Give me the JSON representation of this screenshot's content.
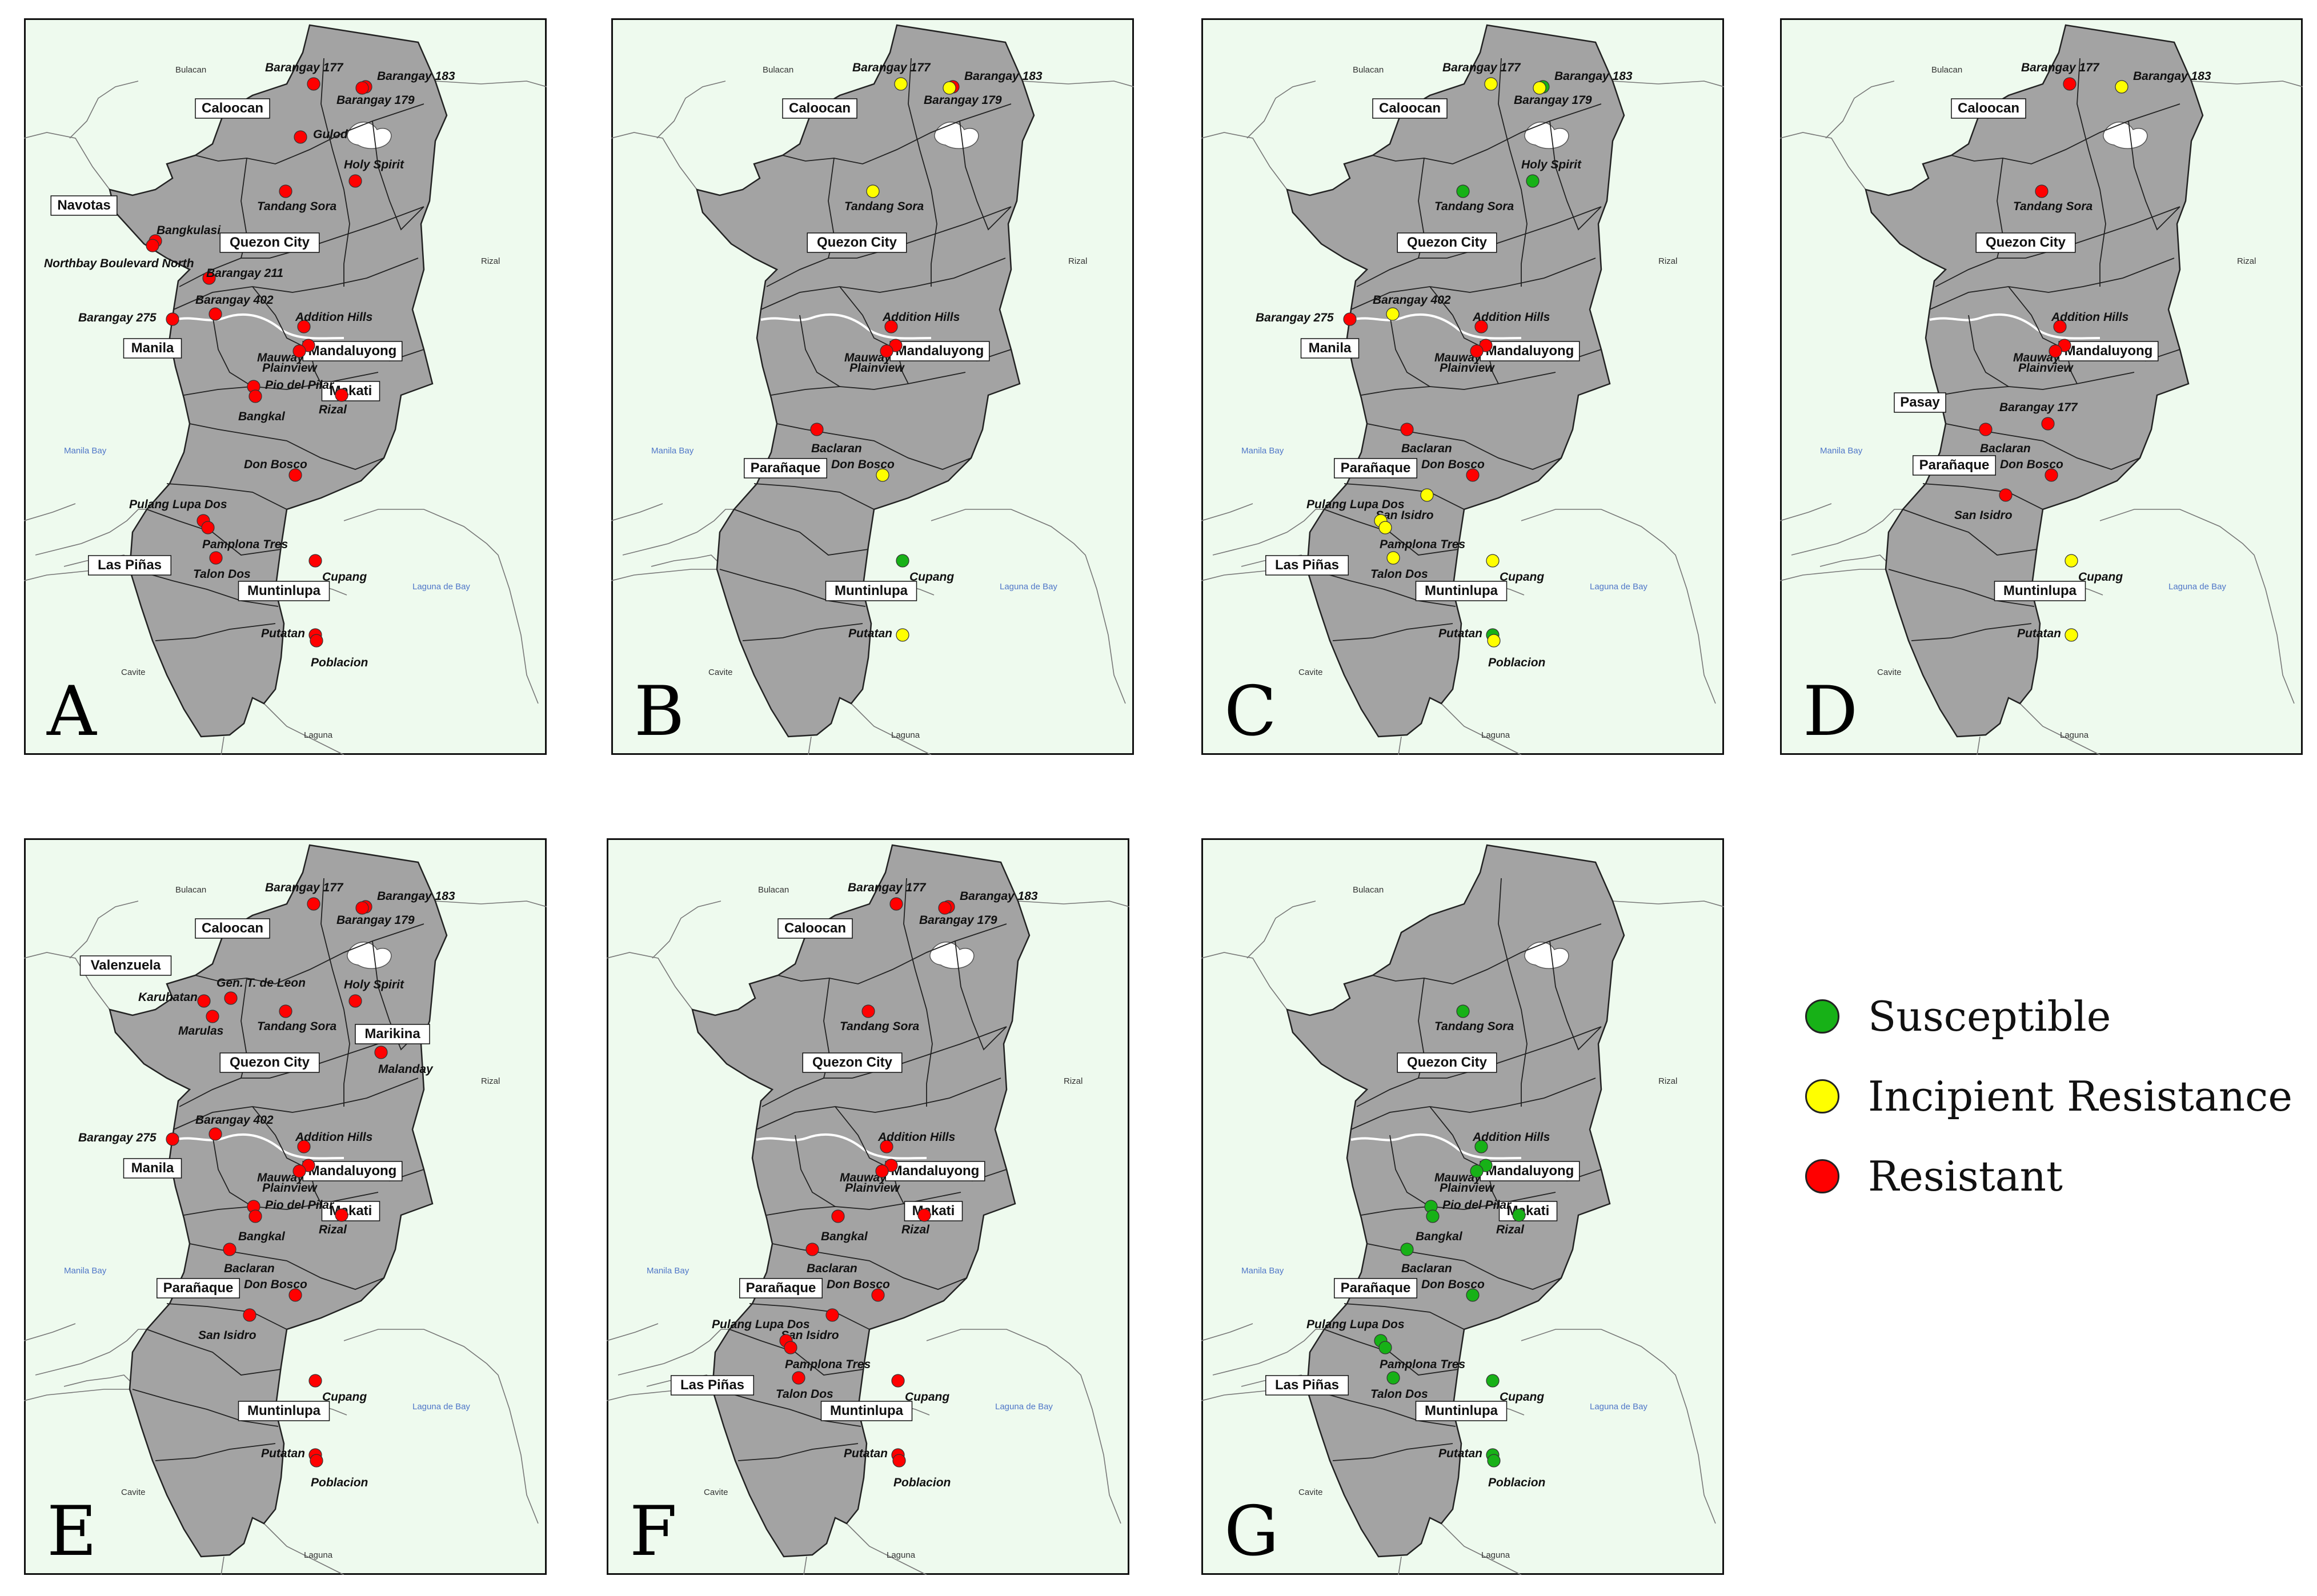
{
  "colors": {
    "susceptible": "#17b117",
    "incipient": "#ffff00",
    "resistant": "#ff0000",
    "land": "#a3a3a3",
    "sea": "#eefaee",
    "border": "#222222",
    "water_label": "#4f76c8"
  },
  "background_labels": {
    "bulacan": "Bulacan",
    "rizal": "Rizal",
    "manila_bay": "Manila Bay",
    "laguna_de_bay": "Laguna de Bay",
    "cavite": "Cavite",
    "laguna": "Laguna"
  },
  "legend": [
    {
      "label": "Susceptible",
      "status": "susceptible"
    },
    {
      "label": "Incipient Resistance",
      "status": "incipient"
    },
    {
      "label": "Resistant",
      "status": "resistant"
    }
  ],
  "panels": [
    {
      "letter": "A",
      "cities": [
        "Caloocan",
        "Navotas",
        "Quezon City",
        "Manila",
        "Mandaluyong",
        "Makati",
        "Las Piñas",
        "Muntinlupa"
      ],
      "sites": [
        {
          "name": "Barangay 177",
          "status": "resistant"
        },
        {
          "name": "Barangay 183",
          "status": "resistant"
        },
        {
          "name": "Barangay 179",
          "status": "resistant"
        },
        {
          "name": "Gulod",
          "status": "resistant"
        },
        {
          "name": "Holy Spirit",
          "status": "resistant"
        },
        {
          "name": "Tandang Sora",
          "status": "resistant"
        },
        {
          "name": "Bangkulasi",
          "status": "resistant"
        },
        {
          "name": "Northbay Boulevard North",
          "status": "resistant"
        },
        {
          "name": "Barangay 211",
          "status": "resistant"
        },
        {
          "name": "Barangay 402",
          "status": "resistant"
        },
        {
          "name": "Barangay 275",
          "status": "resistant"
        },
        {
          "name": "Addition Hills",
          "status": "resistant"
        },
        {
          "name": "Mauway",
          "status": "resistant"
        },
        {
          "name": "Plainview",
          "status": "resistant"
        },
        {
          "name": "Pio del Pilar",
          "status": "resistant"
        },
        {
          "name": "Bangkal",
          "status": "resistant"
        },
        {
          "name": "Rizal",
          "status": "resistant"
        },
        {
          "name": "Don Bosco",
          "status": "resistant"
        },
        {
          "name": "Pulang Lupa Dos",
          "status": "resistant"
        },
        {
          "name": "Pamplona Tres",
          "status": "resistant"
        },
        {
          "name": "Talon Dos",
          "status": "resistant"
        },
        {
          "name": "Cupang",
          "status": "resistant"
        },
        {
          "name": "Putatan",
          "status": "resistant"
        },
        {
          "name": "Poblacion",
          "status": "resistant"
        }
      ]
    },
    {
      "letter": "B",
      "cities": [
        "Caloocan",
        "Quezon City",
        "Mandaluyong",
        "Parañaque",
        "Muntinlupa"
      ],
      "sites": [
        {
          "name": "Barangay 177",
          "status": "incipient"
        },
        {
          "name": "Barangay 183",
          "status": "resistant"
        },
        {
          "name": "Barangay 179",
          "status": "incipient"
        },
        {
          "name": "Tandang Sora",
          "status": "incipient"
        },
        {
          "name": "Addition Hills",
          "status": "resistant"
        },
        {
          "name": "Mauway",
          "status": "resistant"
        },
        {
          "name": "Plainview",
          "status": "resistant"
        },
        {
          "name": "Baclaran",
          "status": "resistant"
        },
        {
          "name": "Don Bosco",
          "status": "incipient"
        },
        {
          "name": "Cupang",
          "status": "susceptible"
        },
        {
          "name": "Putatan",
          "status": "incipient"
        }
      ]
    },
    {
      "letter": "C",
      "cities": [
        "Caloocan",
        "Quezon City",
        "Manila",
        "Mandaluyong",
        "Parañaque",
        "Las Piñas",
        "Muntinlupa"
      ],
      "sites": [
        {
          "name": "Barangay 177",
          "status": "incipient"
        },
        {
          "name": "Barangay 183",
          "status": "susceptible"
        },
        {
          "name": "Barangay 179",
          "status": "incipient"
        },
        {
          "name": "Tandang Sora",
          "status": "susceptible"
        },
        {
          "name": "Holy Spirit",
          "status": "susceptible"
        },
        {
          "name": "Barangay 275",
          "status": "resistant"
        },
        {
          "name": "Barangay 402",
          "status": "incipient"
        },
        {
          "name": "Addition Hills",
          "status": "resistant"
        },
        {
          "name": "Mauway",
          "status": "resistant"
        },
        {
          "name": "Plainview",
          "status": "resistant"
        },
        {
          "name": "Baclaran",
          "status": "resistant"
        },
        {
          "name": "Don Bosco",
          "status": "resistant"
        },
        {
          "name": "San Isidro",
          "status": "incipient"
        },
        {
          "name": "Pulang Lupa Dos",
          "status": "incipient"
        },
        {
          "name": "Pamplona Tres",
          "status": "incipient"
        },
        {
          "name": "Talon Dos",
          "status": "incipient"
        },
        {
          "name": "Cupang",
          "status": "incipient"
        },
        {
          "name": "Putatan",
          "status": "susceptible"
        },
        {
          "name": "Poblacion",
          "status": "incipient"
        }
      ]
    },
    {
      "letter": "D",
      "cities": [
        "Caloocan",
        "Quezon City",
        "Mandaluyong",
        "Pasay",
        "Parañaque",
        "Muntinlupa"
      ],
      "sites": [
        {
          "name": "Barangay 177",
          "status": "resistant"
        },
        {
          "name": "Barangay 183",
          "status": "incipient"
        },
        {
          "name": "Tandang Sora",
          "status": "resistant"
        },
        {
          "name": "Addition Hills",
          "status": "resistant"
        },
        {
          "name": "Mauway",
          "status": "resistant"
        },
        {
          "name": "Plainview",
          "status": "resistant"
        },
        {
          "name": "Baclaran",
          "status": "resistant"
        },
        {
          "name": "Barangay 177",
          "status": "resistant"
        },
        {
          "name": "Don Bosco",
          "status": "resistant"
        },
        {
          "name": "San Isidro",
          "status": "resistant"
        },
        {
          "name": "Cupang",
          "status": "incipient"
        },
        {
          "name": "Putatan",
          "status": "incipient"
        }
      ]
    },
    {
      "letter": "E",
      "cities": [
        "Caloocan",
        "Valenzuela",
        "Quezon City",
        "Marikina",
        "Manila",
        "Mandaluyong",
        "Makati",
        "Parañaque",
        "Muntinlupa"
      ],
      "sites": [
        {
          "name": "Barangay 177",
          "status": "resistant"
        },
        {
          "name": "Barangay 183",
          "status": "resistant"
        },
        {
          "name": "Barangay 179",
          "status": "resistant"
        },
        {
          "name": "Gen. T. de Leon",
          "status": "resistant"
        },
        {
          "name": "Karuhatan",
          "status": "resistant"
        },
        {
          "name": "Marulas",
          "status": "resistant"
        },
        {
          "name": "Tandang Sora",
          "status": "resistant"
        },
        {
          "name": "Holy Spirit",
          "status": "resistant"
        },
        {
          "name": "Malanday",
          "status": "resistant"
        },
        {
          "name": "Barangay 275",
          "status": "resistant"
        },
        {
          "name": "Barangay 402",
          "status": "resistant"
        },
        {
          "name": "Addition Hills",
          "status": "resistant"
        },
        {
          "name": "Mauway",
          "status": "resistant"
        },
        {
          "name": "Plainview",
          "status": "resistant"
        },
        {
          "name": "Pio del Pilar",
          "status": "resistant"
        },
        {
          "name": "Bangkal",
          "status": "resistant"
        },
        {
          "name": "Rizal",
          "status": "resistant"
        },
        {
          "name": "Baclaran",
          "status": "resistant"
        },
        {
          "name": "Don Bosco",
          "status": "resistant"
        },
        {
          "name": "San Isidro",
          "status": "resistant"
        },
        {
          "name": "Cupang",
          "status": "resistant"
        },
        {
          "name": "Putatan",
          "status": "resistant"
        },
        {
          "name": "Poblacion",
          "status": "resistant"
        }
      ]
    },
    {
      "letter": "F",
      "cities": [
        "Caloocan",
        "Quezon City",
        "Mandaluyong",
        "Makati",
        "Parañaque",
        "Las Piñas",
        "Muntinlupa"
      ],
      "sites": [
        {
          "name": "Barangay 177",
          "status": "resistant"
        },
        {
          "name": "Barangay 183",
          "status": "resistant"
        },
        {
          "name": "Barangay 179",
          "status": "resistant"
        },
        {
          "name": "Tandang Sora",
          "status": "resistant"
        },
        {
          "name": "Addition Hills",
          "status": "resistant"
        },
        {
          "name": "Mauway",
          "status": "resistant"
        },
        {
          "name": "Plainview",
          "status": "resistant"
        },
        {
          "name": "Bangkal",
          "status": "resistant"
        },
        {
          "name": "Rizal",
          "status": "resistant"
        },
        {
          "name": "Baclaran",
          "status": "resistant"
        },
        {
          "name": "Don Bosco",
          "status": "resistant"
        },
        {
          "name": "San Isidro",
          "status": "resistant"
        },
        {
          "name": "Pulang Lupa Dos",
          "status": "resistant"
        },
        {
          "name": "Pamplona Tres",
          "status": "resistant"
        },
        {
          "name": "Talon Dos",
          "status": "resistant"
        },
        {
          "name": "Cupang",
          "status": "resistant"
        },
        {
          "name": "Putatan",
          "status": "resistant"
        },
        {
          "name": "Poblacion",
          "status": "resistant"
        }
      ]
    },
    {
      "letter": "G",
      "cities": [
        "Quezon City",
        "Mandaluyong",
        "Makati",
        "Parañaque",
        "Las Piñas",
        "Muntinlupa"
      ],
      "sites": [
        {
          "name": "Tandang Sora",
          "status": "susceptible"
        },
        {
          "name": "Addition Hills",
          "status": "susceptible"
        },
        {
          "name": "Mauway",
          "status": "susceptible"
        },
        {
          "name": "Plainview",
          "status": "susceptible"
        },
        {
          "name": "Pio del Pilar",
          "status": "susceptible"
        },
        {
          "name": "Bangkal",
          "status": "susceptible"
        },
        {
          "name": "Rizal",
          "status": "susceptible"
        },
        {
          "name": "Baclaran",
          "status": "susceptible"
        },
        {
          "name": "Don Bosco",
          "status": "susceptible"
        },
        {
          "name": "Pulang Lupa Dos",
          "status": "susceptible"
        },
        {
          "name": "Pamplona Tres",
          "status": "susceptible"
        },
        {
          "name": "Talon Dos",
          "status": "susceptible"
        },
        {
          "name": "Cupang",
          "status": "susceptible"
        },
        {
          "name": "Putatan",
          "status": "susceptible"
        },
        {
          "name": "Poblacion",
          "status": "susceptible"
        }
      ]
    }
  ]
}
